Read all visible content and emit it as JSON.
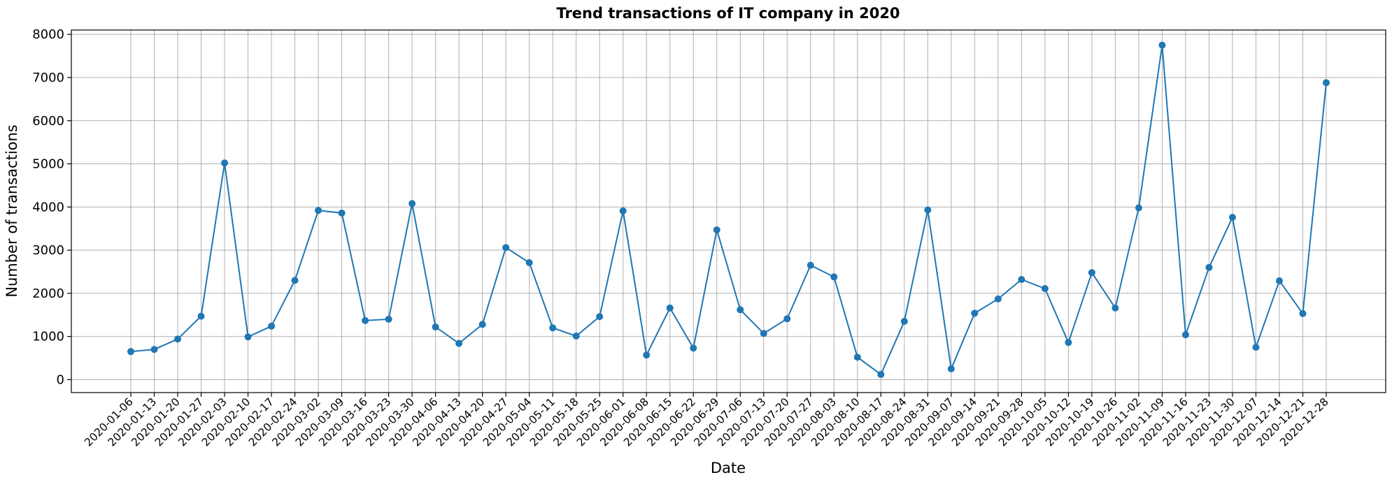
{
  "chart_data": {
    "type": "line",
    "title": "Trend transactions of IT company in 2020",
    "xlabel": "Date",
    "ylabel": "Number of transactions",
    "ylim": [
      -300,
      8100
    ],
    "yticks": [
      0,
      1000,
      2000,
      3000,
      4000,
      5000,
      6000,
      7000,
      8000
    ],
    "grid": true,
    "color": "#1f77b4",
    "x": [
      "2020-01-06",
      "2020-01-13",
      "2020-01-20",
      "2020-01-27",
      "2020-02-03",
      "2020-02-10",
      "2020-02-17",
      "2020-02-24",
      "2020-03-02",
      "2020-03-09",
      "2020-03-16",
      "2020-03-23",
      "2020-03-30",
      "2020-04-06",
      "2020-04-13",
      "2020-04-20",
      "2020-04-27",
      "2020-05-04",
      "2020-05-11",
      "2020-05-18",
      "2020-05-25",
      "2020-06-01",
      "2020-06-08",
      "2020-06-15",
      "2020-06-22",
      "2020-06-29",
      "2020-07-06",
      "2020-07-13",
      "2020-07-20",
      "2020-07-27",
      "2020-08-03",
      "2020-08-10",
      "2020-08-17",
      "2020-08-24",
      "2020-08-31",
      "2020-09-07",
      "2020-09-14",
      "2020-09-21",
      "2020-09-28",
      "2020-10-05",
      "2020-10-12",
      "2020-10-19",
      "2020-10-26",
      "2020-11-02",
      "2020-11-09",
      "2020-11-16",
      "2020-11-23",
      "2020-11-30",
      "2020-12-07",
      "2020-12-14",
      "2020-12-21",
      "2020-12-28"
    ],
    "values": [
      650,
      700,
      940,
      1470,
      5020,
      990,
      1240,
      2300,
      3920,
      3860,
      1370,
      1400,
      4080,
      1220,
      840,
      1280,
      3060,
      2710,
      1200,
      1010,
      1460,
      3910,
      570,
      1660,
      730,
      3470,
      1620,
      1070,
      1410,
      2650,
      2380,
      520,
      120,
      1350,
      3930,
      250,
      1540,
      1870,
      2320,
      2110,
      860,
      2480,
      1660,
      3980,
      7750,
      1040,
      2600,
      3760,
      750,
      2290,
      1530,
      6880
    ]
  }
}
